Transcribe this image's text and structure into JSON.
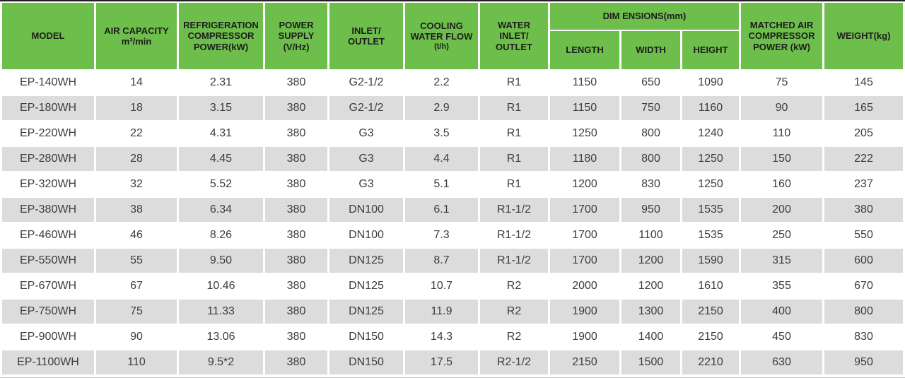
{
  "colors": {
    "header_green": "#6dbe4b",
    "header_text": "#1d1d1d",
    "row_alt_gray": "#dcdcdc",
    "body_text": "#3d3d3d",
    "top_rule": "#1f1f1f"
  },
  "table": {
    "header": {
      "model": {
        "main": "MODEL"
      },
      "air_capacity": {
        "main": "AIR CAPACITY\nm³/min"
      },
      "refrigeration_compressor_power": {
        "main": "REFRIGERATION\nCOMPRESSOR\nPOWER(kW)"
      },
      "power_supply": {
        "main": "POWER\nSUPPLY\n(V/Hz)"
      },
      "inlet_outlet": {
        "main": "INLET/\nOUTLET"
      },
      "cooling_water_flow": {
        "main": "COOLING\nWATER FLOW",
        "sub": "(t/h)"
      },
      "water_inlet_outlet": {
        "main": "WATER\nINLET/\nOUTLET"
      },
      "dimensions": {
        "group": "DIM ENSIONS(mm)",
        "length": "LENGTH",
        "width": "WIDTH",
        "height": "HEIGHT"
      },
      "matched_air_compressor_power": {
        "main": "MATCHED AIR\nCOMPRESSOR\nPOWER (kW)"
      },
      "weight": {
        "main": "WEIGHT(kg)"
      }
    },
    "rows": [
      [
        "EP-140WH",
        "14",
        "2.31",
        "380",
        "G2-1/2",
        "2.2",
        "R1",
        "1150",
        "650",
        "1090",
        "75",
        "145"
      ],
      [
        "EP-180WH",
        "18",
        "3.15",
        "380",
        "G2-1/2",
        "2.9",
        "R1",
        "1150",
        "750",
        "1160",
        "90",
        "165"
      ],
      [
        "EP-220WH",
        "22",
        "4.31",
        "380",
        "G3",
        "3.5",
        "R1",
        "1250",
        "800",
        "1240",
        "110",
        "205"
      ],
      [
        "EP-280WH",
        "28",
        "4.45",
        "380",
        "G3",
        "4.4",
        "R1",
        "1180",
        "800",
        "1250",
        "150",
        "222"
      ],
      [
        "EP-320WH",
        "32",
        "5.52",
        "380",
        "G3",
        "5.1",
        "R1",
        "1200",
        "830",
        "1250",
        "160",
        "237"
      ],
      [
        "EP-380WH",
        "38",
        "6.34",
        "380",
        "DN100",
        "6.1",
        "R1-1/2",
        "1700",
        "950",
        "1535",
        "200",
        "380"
      ],
      [
        "EP-460WH",
        "46",
        "8.26",
        "380",
        "DN100",
        "7.3",
        "R1-1/2",
        "1700",
        "1100",
        "1535",
        "250",
        "550"
      ],
      [
        "EP-550WH",
        "55",
        "9.50",
        "380",
        "DN125",
        "8.7",
        "R1-1/2",
        "1700",
        "1200",
        "1590",
        "315",
        "600"
      ],
      [
        "EP-670WH",
        "67",
        "10.46",
        "380",
        "DN125",
        "10.7",
        "R2",
        "2000",
        "1200",
        "1610",
        "355",
        "670"
      ],
      [
        "EP-750WH",
        "75",
        "11.33",
        "380",
        "DN125",
        "11.9",
        "R2",
        "1900",
        "1300",
        "2150",
        "400",
        "800"
      ],
      [
        "EP-900WH",
        "90",
        "13.06",
        "380",
        "DN150",
        "14.3",
        "R2",
        "1900",
        "1400",
        "2150",
        "450",
        "830"
      ],
      [
        "EP-1100WH",
        "110",
        "9.5*2",
        "380",
        "DN150",
        "17.5",
        "R2-1/2",
        "2150",
        "1500",
        "2210",
        "630",
        "950"
      ]
    ]
  }
}
